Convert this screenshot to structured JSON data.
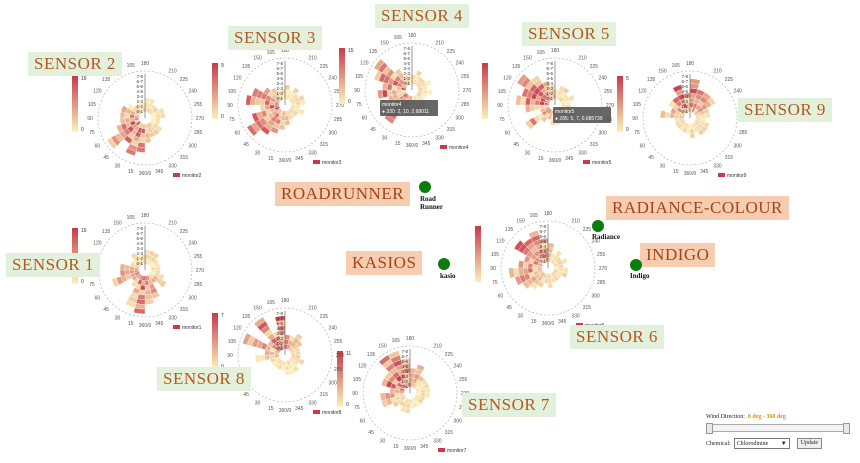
{
  "colors": {
    "sensor_label_bg": "#e3f0dc",
    "sensor_label_text": "#b35a1e",
    "factory_label_bg": "#f6cdb0",
    "factory_dot": "#0c7d0c",
    "scale_low": "#fbf1b9",
    "scale_high": "#c83a4b"
  },
  "sensors": [
    {
      "title": "SENSOR 1",
      "monitor": "monitor1",
      "max": "16",
      "min": "0"
    },
    {
      "title": "SENSOR 2",
      "monitor": "monitor2",
      "max": "16",
      "min": "0"
    },
    {
      "title": "SENSOR 3",
      "monitor": "monitor3",
      "max": "9",
      "min": "0"
    },
    {
      "title": "SENSOR 4",
      "monitor": "monitor4",
      "max": "15",
      "min": "0",
      "tooltip_name": "monitor4",
      "tooltip_value": "330: 2, 10, 2.68011"
    },
    {
      "title": "SENSOR 5",
      "monitor": "monitor5",
      "max": "",
      "min": "",
      "tooltip_name": "monitor5",
      "tooltip_value": "285: 5, 7, 0.685739"
    },
    {
      "title": "SENSOR 6",
      "monitor": "monitor6",
      "max": "",
      "min": ""
    },
    {
      "title": "SENSOR 7",
      "monitor": "monitor7",
      "max": "11",
      "min": "0"
    },
    {
      "title": "SENSOR 8",
      "monitor": "monitor8",
      "max": "7",
      "min": "0"
    },
    {
      "title": "SENSOR 9",
      "monitor": "monitor9",
      "max": "5",
      "min": "0"
    }
  ],
  "angle_labels": [
    "180",
    "210",
    "225",
    "240",
    "255",
    "270",
    "285",
    "300",
    "315",
    "330",
    "345",
    "360/0",
    "15",
    "30",
    "45",
    "60",
    "75",
    "90",
    "105",
    "120",
    "135",
    "150",
    "165"
  ],
  "radial_labels": [
    "7-8",
    "6-7",
    "5-6",
    "4-5",
    "3-4",
    "2-3",
    "1-2",
    "0-1"
  ],
  "factories": [
    {
      "title": "ROADRUNNER",
      "name_line1": "Road",
      "name_line2": "Runner"
    },
    {
      "title": "KASIOS",
      "name_line1": "kasio",
      "name_line2": ""
    },
    {
      "title": "RADIANCE-COLOUR",
      "name_line1": "Radiance",
      "name_line2": ""
    },
    {
      "title": "INDIGO",
      "name_line1": "Indigo",
      "name_line2": ""
    }
  ],
  "controls": {
    "wind_label": "Wind Direction:",
    "wind_range": "0 deg - 360 deg",
    "slider_min": 0,
    "slider_max": 360,
    "chemical_label": "Chemical:",
    "chemical_value": "Chlorodinine",
    "update_label": "Update"
  }
}
